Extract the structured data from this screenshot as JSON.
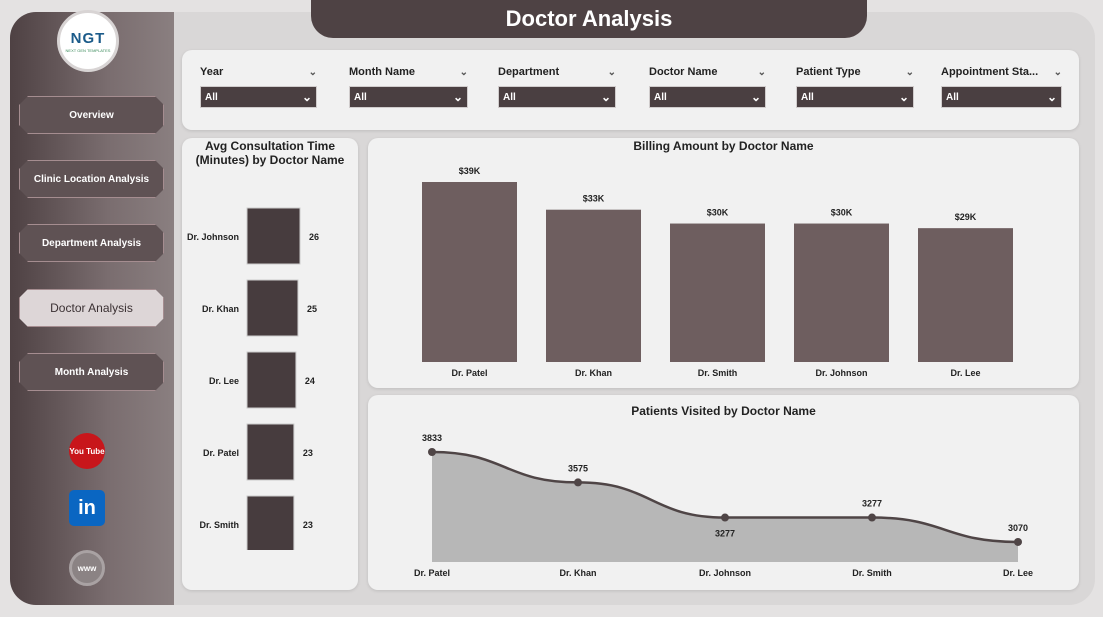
{
  "app": {
    "title": "Doctor Analysis",
    "logo_text": "NGT",
    "logo_sub": "NEXT GEN TEMPLATES"
  },
  "nav": [
    {
      "label": "Overview",
      "active": false
    },
    {
      "label": "Clinic Location Analysis",
      "active": false
    },
    {
      "label": "Department Analysis",
      "active": false
    },
    {
      "label": "Doctor Analysis",
      "active": true
    },
    {
      "label": "Month Analysis",
      "active": false
    }
  ],
  "social": {
    "youtube": "You Tube",
    "linkedin": "in",
    "web": "www"
  },
  "filters": [
    {
      "label": "Year",
      "value": "All"
    },
    {
      "label": "Month Name",
      "value": "All"
    },
    {
      "label": "Department",
      "value": "All"
    },
    {
      "label": "Doctor Name",
      "value": "All"
    },
    {
      "label": "Patient Type",
      "value": "All"
    },
    {
      "label": "Appointment Sta...",
      "value": "All"
    }
  ],
  "chart_data": [
    {
      "type": "bar",
      "orientation": "horizontal",
      "title": "Avg Consultation Time (Minutes) by Doctor Name",
      "categories": [
        "Dr. Johnson",
        "Dr. Khan",
        "Dr. Lee",
        "Dr. Patel",
        "Dr. Smith"
      ],
      "values": [
        26,
        25,
        24,
        23,
        23
      ],
      "color": "#473c3e"
    },
    {
      "type": "bar",
      "title": "Billing Amount by Doctor Name",
      "categories": [
        "Dr. Patel",
        "Dr. Khan",
        "Dr. Smith",
        "Dr. Johnson",
        "Dr. Lee"
      ],
      "values": [
        39,
        33,
        30,
        30,
        29
      ],
      "labels": [
        "$39K",
        "$33K",
        "$30K",
        "$30K",
        "$29K"
      ],
      "color": "#6e5e5f"
    },
    {
      "type": "area",
      "title": "Patients Visited by Doctor Name",
      "categories": [
        "Dr. Patel",
        "Dr. Khan",
        "Dr. Johnson",
        "Dr. Smith",
        "Dr. Lee"
      ],
      "values": [
        3833,
        3575,
        3277,
        3277,
        3070
      ],
      "labels": [
        "3833",
        "3575",
        "3277",
        "3277",
        "3070"
      ],
      "fill": "#b3b3b3",
      "line": "#4f4546"
    }
  ]
}
